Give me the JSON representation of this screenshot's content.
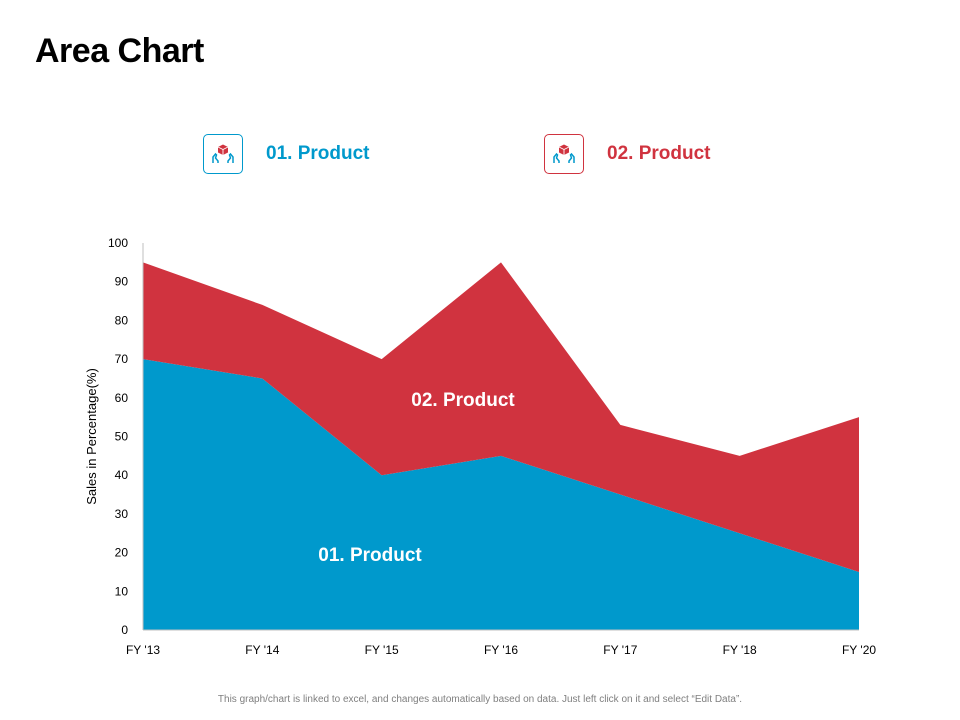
{
  "page": {
    "title": "Area Chart",
    "footer_note": "This graph/chart is linked to excel, and changes automatically based on data. Just left click on it and select “Edit Data”."
  },
  "legend": [
    {
      "label": "01.  Product",
      "color": "#0099cc",
      "icon": "box-in-hands-icon"
    },
    {
      "label": "02.  Product",
      "color": "#d0333f",
      "icon": "box-in-hands-icon"
    }
  ],
  "chart_data": {
    "type": "area",
    "stacked": true,
    "ylabel": "Sales in Percentage(%)",
    "xlabel": "",
    "ylim": [
      0,
      100
    ],
    "yticks": [
      0,
      10,
      20,
      30,
      40,
      50,
      60,
      70,
      80,
      90,
      100
    ],
    "categories": [
      "FY '13",
      "FY '14",
      "FY '15",
      "FY '16",
      "FY '17",
      "FY '18",
      "FY '20"
    ],
    "series": [
      {
        "name": "01.  Product",
        "color": "#0099cc",
        "values": [
          70,
          65,
          40,
          45,
          35,
          25,
          15
        ]
      },
      {
        "name": "02.  Product",
        "color": "#d0333f",
        "values": [
          25,
          19,
          30,
          50,
          18,
          20,
          40
        ]
      }
    ],
    "grid": false,
    "legend_position": "top"
  }
}
